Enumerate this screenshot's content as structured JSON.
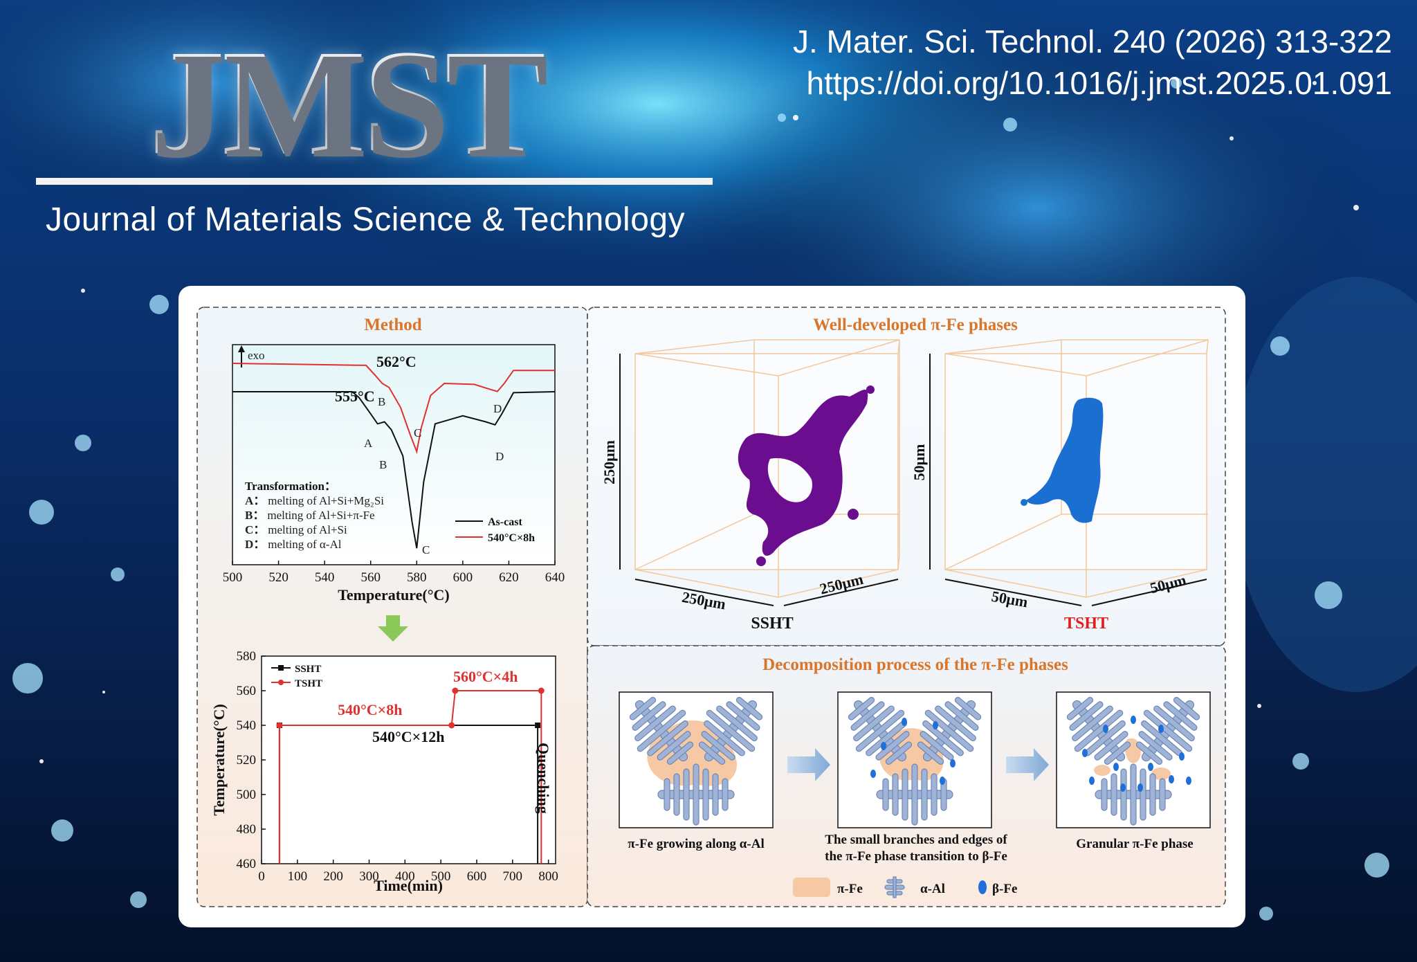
{
  "header": {
    "logo": "JMST",
    "journal_name": "Journal of Materials Science & Technology",
    "citation_line1": "J. Mater. Sci. Technol. 240 (2026) 313-322",
    "citation_line2": "https://doi.org/10.1016/j.jmst.2025.01.091"
  },
  "panels": {
    "method_title": "Method",
    "phases_title": "Well-developed π-Fe phases",
    "decomp_title": "Decomposition process of the π-Fe phases"
  },
  "dsc": {
    "exo_label": "exo",
    "peak_562": "562°C",
    "peak_555": "555°C",
    "transform_title": "Transformation：",
    "transforms": [
      {
        "key": "A：",
        "text": "melting of Al+Si+Mg₂Si"
      },
      {
        "key": "B：",
        "text": "melting of Al+Si+π-Fe"
      },
      {
        "key": "C：",
        "text": "melting of Al+Si"
      },
      {
        "key": "D：",
        "text": "melting of α-Al"
      }
    ],
    "legend": [
      "As-cast",
      "540°C×8h"
    ],
    "xlabel": "Temperature(°C)"
  },
  "chart_data": [
    {
      "type": "line",
      "title": "",
      "xlabel": "Temperature(°C)",
      "ylabel": "",
      "xlim": [
        500,
        640
      ],
      "x_ticks": [
        500,
        520,
        540,
        560,
        580,
        600,
        620,
        640
      ],
      "series": [
        {
          "name": "As-cast",
          "color": "#111111",
          "x": [
            500,
            552,
            555,
            560,
            563,
            566,
            569,
            574,
            578,
            580,
            583,
            588,
            600,
            610,
            614,
            617,
            622,
            640
          ],
          "y": [
            0,
            0,
            -0.3,
            -1.1,
            -1.6,
            -1.5,
            -1.9,
            -3.2,
            -6.5,
            -7.8,
            -4.5,
            -1.6,
            -1.2,
            -1.5,
            -1.65,
            -1.1,
            -0.05,
            0
          ]
        },
        {
          "name": "540°C×8h",
          "color": "#e03030",
          "x": [
            500,
            558,
            562,
            565,
            568,
            573,
            577,
            580,
            582,
            586,
            592,
            605,
            612,
            615,
            618,
            622,
            640
          ],
          "y": [
            0,
            -0.1,
            -0.6,
            -1.0,
            -1.2,
            -2.2,
            -3.5,
            -4.4,
            -3.2,
            -1.6,
            -1.0,
            -1.05,
            -1.3,
            -1.4,
            -1.0,
            -0.35,
            -0.35
          ]
        }
      ],
      "annotations": [
        "A",
        "B",
        "C",
        "D",
        "B",
        "C",
        "D",
        "562°C",
        "555°C"
      ]
    },
    {
      "type": "line",
      "title": "",
      "xlabel": "Time(min)",
      "ylabel": "Temperature(°C)",
      "xlim": [
        0,
        820
      ],
      "ylim": [
        460,
        580
      ],
      "x_ticks": [
        0,
        100,
        200,
        300,
        400,
        500,
        600,
        700,
        800
      ],
      "y_ticks": [
        460,
        480,
        500,
        520,
        540,
        560,
        580
      ],
      "series": [
        {
          "name": "SSHT",
          "color": "#111111",
          "x": [
            50,
            50,
            770,
            770
          ],
          "y": [
            460,
            540,
            540,
            460
          ]
        },
        {
          "name": "TSHT",
          "color": "#e03030",
          "x": [
            50,
            50,
            530,
            540,
            780,
            780
          ],
          "y": [
            460,
            540,
            540,
            560,
            560,
            460
          ]
        }
      ],
      "annotations": [
        "540°C×8h",
        "560°C×4h",
        "540°C×12h",
        "Quenching"
      ]
    }
  ],
  "heat": {
    "legend": [
      "SSHT",
      "TSHT"
    ],
    "note_8h": "540°C×8h",
    "note_4h": "560°C×4h",
    "note_12h": "540°C×12h",
    "quench": "Quenching",
    "xlabel": "Time(min)",
    "ylabel": "Temperature(°C)"
  },
  "phases3d": {
    "left_dims": [
      "250μm",
      "250μm",
      "250μm"
    ],
    "right_dims": [
      "50μm",
      "50μm",
      "50μm"
    ],
    "left_label": "SSHT",
    "right_label": "TSHT"
  },
  "decomp": {
    "step1": "π-Fe growing along α-Al",
    "step2a": "The small branches and edges of",
    "step2b": "the π-Fe phase transition to β-Fe",
    "step3": "Granular π-Fe phase",
    "legend": [
      "π-Fe",
      "α-Al",
      "β-Fe"
    ]
  },
  "colors": {
    "pi_fe": "#f6c8a4",
    "alpha_al": "#9fb3d6",
    "beta_fe": "#1f6fd8",
    "accent": "#d9762a"
  }
}
